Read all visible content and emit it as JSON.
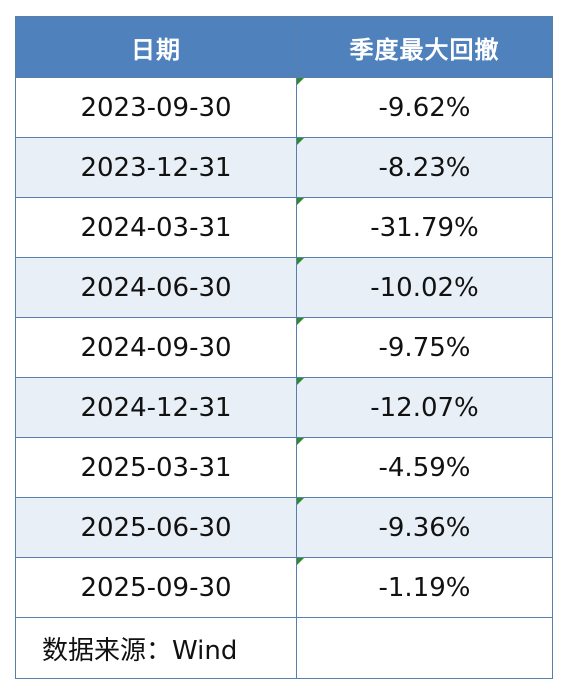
{
  "table": {
    "headers": [
      "日期",
      "季度最大回撤"
    ],
    "rows": [
      {
        "date": "2023-09-30",
        "drawdown": "-9.62%"
      },
      {
        "date": "2023-12-31",
        "drawdown": "-8.23%"
      },
      {
        "date": "2024-03-31",
        "drawdown": "-31.79%"
      },
      {
        "date": "2024-06-30",
        "drawdown": "-10.02%"
      },
      {
        "date": "2024-09-30",
        "drawdown": "-9.75%"
      },
      {
        "date": "2024-12-31",
        "drawdown": "-12.07%"
      },
      {
        "date": "2025-03-31",
        "drawdown": "-4.59%"
      },
      {
        "date": "2025-06-30",
        "drawdown": "-9.36%"
      },
      {
        "date": "2025-09-30",
        "drawdown": "-1.19%"
      }
    ],
    "source": "数据来源：Wind",
    "colors": {
      "header_bg": "#4f81bd",
      "header_text": "#ffffff",
      "alt_row_bg": "#e9eff7",
      "border": "#5b7fad",
      "cell_marker": "#2e8b2e"
    }
  },
  "chart_data": {
    "type": "table",
    "columns": [
      "日期",
      "季度最大回撤"
    ],
    "rows": [
      [
        "2023-09-30",
        "-9.62%"
      ],
      [
        "2023-12-31",
        "-8.23%"
      ],
      [
        "2024-03-31",
        "-31.79%"
      ],
      [
        "2024-06-30",
        "-10.02%"
      ],
      [
        "2024-09-30",
        "-9.75%"
      ],
      [
        "2024-12-31",
        "-12.07%"
      ],
      [
        "2025-03-31",
        "-4.59%"
      ],
      [
        "2025-06-30",
        "-9.36%"
      ],
      [
        "2025-09-30",
        "-1.19%"
      ]
    ],
    "values": [
      -9.62,
      -8.23,
      -31.79,
      -10.02,
      -9.75,
      -12.07,
      -4.59,
      -9.36,
      -1.19
    ]
  }
}
